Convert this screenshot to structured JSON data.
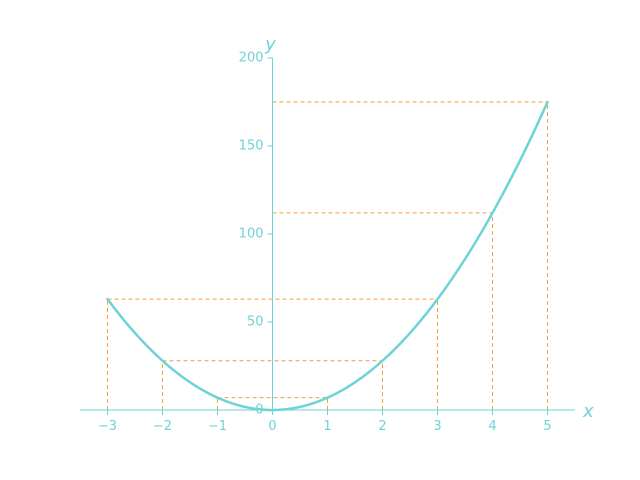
{
  "chart_data": {
    "type": "line",
    "xlabel": "x",
    "ylabel": "y",
    "xlim": [
      -3.5,
      5.5
    ],
    "ylim": [
      0,
      200
    ],
    "x_ticks": [
      -3,
      -2,
      -1,
      0,
      1,
      2,
      3,
      4,
      5
    ],
    "x_tick_labels": [
      "−3",
      "−2",
      "−1",
      "0",
      "1",
      "2",
      "3",
      "4",
      "5"
    ],
    "y_ticks": [
      0,
      50,
      100,
      150,
      200
    ],
    "y_tick_labels": [
      "0",
      "50",
      "100",
      "150",
      "200"
    ],
    "grid": false,
    "series": [
      {
        "function": "y = 7x^2",
        "x_range": [
          -3,
          5
        ],
        "color": "#6dd3d6",
        "points": [
          {
            "x": -3,
            "y": 63
          },
          {
            "x": -2,
            "y": 28
          },
          {
            "x": -1,
            "y": 7
          },
          {
            "x": 0,
            "y": 0
          },
          {
            "x": 1,
            "y": 7
          },
          {
            "x": 2,
            "y": 28
          },
          {
            "x": 3,
            "y": 63
          },
          {
            "x": 4,
            "y": 112
          },
          {
            "x": 5,
            "y": 175
          }
        ]
      }
    ],
    "guides": {
      "color": "#f0a040",
      "style": "dashed",
      "horizontal": [
        {
          "y": 7,
          "x_from": -1,
          "x_to": 1
        },
        {
          "y": 28,
          "x_from": -2,
          "x_to": 2
        },
        {
          "y": 63,
          "x_from": -3,
          "x_to": 3
        },
        {
          "y": 112,
          "x_from": 0,
          "x_to": 4
        },
        {
          "y": 175,
          "x_from": 0,
          "x_to": 5
        }
      ],
      "vertical": [
        {
          "x": -3,
          "y_to": 63
        },
        {
          "x": -2,
          "y_to": 28
        },
        {
          "x": -1,
          "y_to": 7
        },
        {
          "x": 1,
          "y_to": 7
        },
        {
          "x": 2,
          "y_to": 28
        },
        {
          "x": 3,
          "y_to": 63
        },
        {
          "x": 4,
          "y_to": 112
        },
        {
          "x": 5,
          "y_to": 175
        }
      ]
    },
    "axis_color": "#6dd3d6"
  }
}
